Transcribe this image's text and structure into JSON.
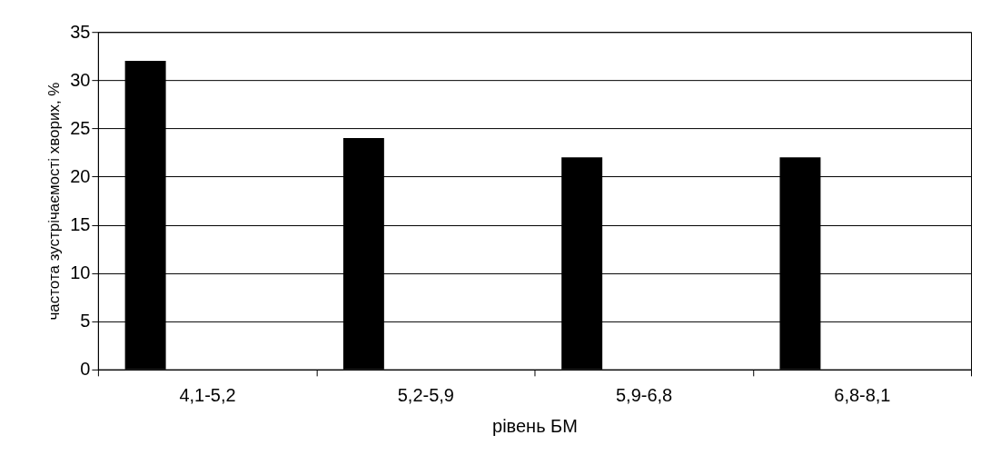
{
  "chart_data": {
    "type": "bar",
    "xlabel": "рівень БМ",
    "ylabel": "частота зустрічаємості хворих, %",
    "categories": [
      "4,1-5,2",
      "5,2-5,9",
      "5,9-6,8",
      "6,8-8,1"
    ],
    "values": [
      32,
      24,
      22,
      22
    ],
    "color": "#000000",
    "ylim": [
      0,
      35
    ],
    "yticks": [
      0,
      5,
      10,
      15,
      20,
      25,
      30,
      35
    ],
    "grid": "y"
  }
}
